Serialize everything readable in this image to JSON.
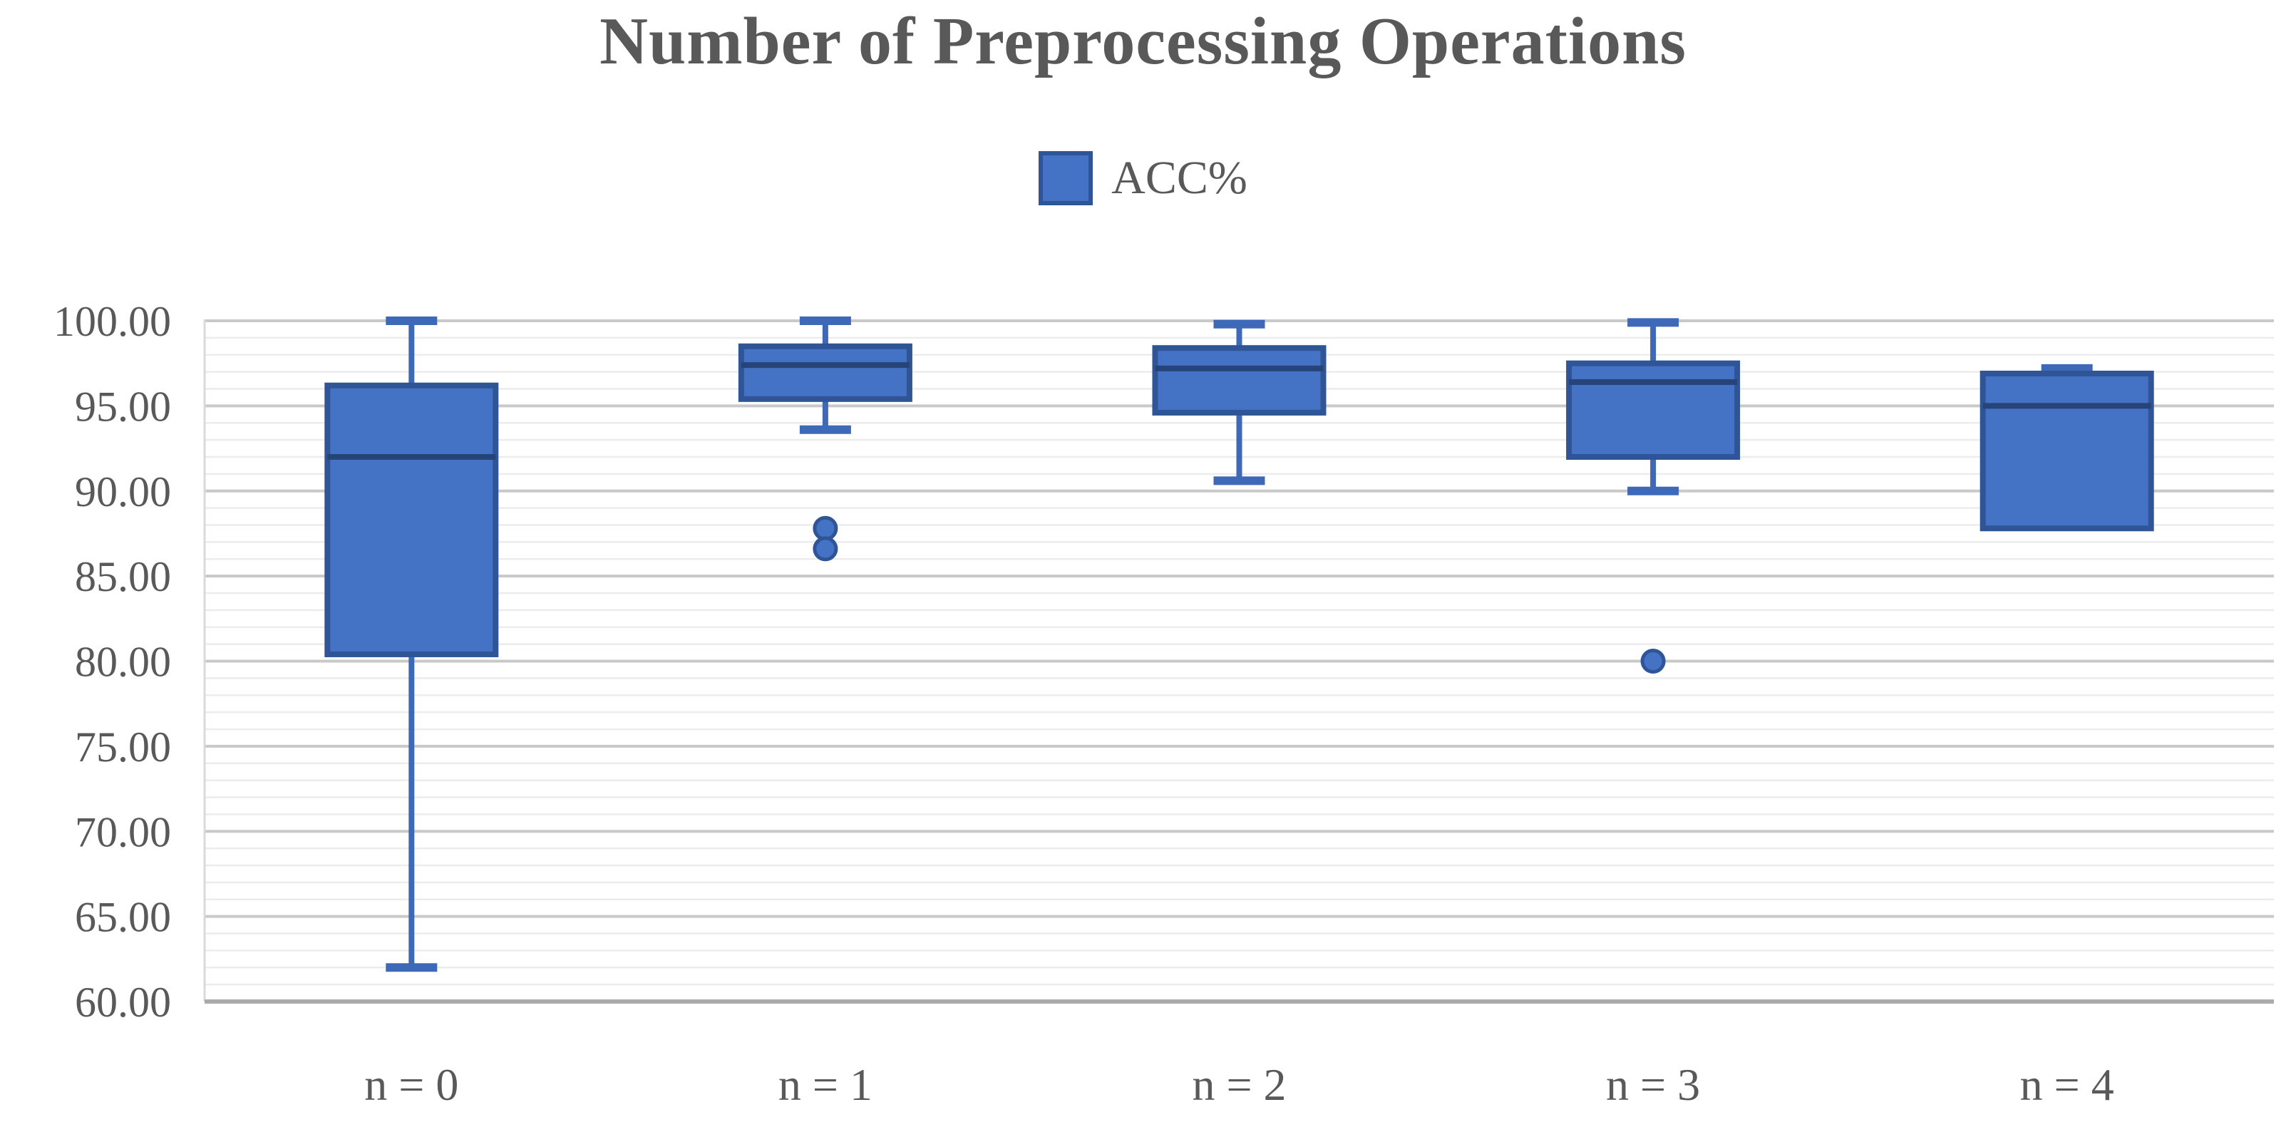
{
  "title": "Number of Preprocessing Operations",
  "legend": {
    "label": "ACC%"
  },
  "colors": {
    "box_fill": "#4472C4",
    "box_border": "#2F5597",
    "median_line": "#264478",
    "whisker": "#3E68B8",
    "outlier_fill": "#4472C4",
    "outlier_border": "#2F5597",
    "grid_minor": "#ECECEC",
    "grid_major": "#C9C9C9",
    "axis_line": "#ABABAB",
    "plot_border": "#D9D9D9",
    "text": "#595959"
  },
  "chart_data": {
    "type": "boxplot",
    "title": "Number of Preprocessing Operations",
    "legend_entries": [
      "ACC%"
    ],
    "categories": [
      "n = 0",
      "n = 1",
      "n = 2",
      "n = 3",
      "n = 4"
    ],
    "ylabel": "",
    "xlabel": "",
    "ylim": [
      60,
      100
    ],
    "y_major_step": 5,
    "y_minor_step": 1,
    "grid": true,
    "y_tick_labels": [
      "100.00",
      "95.00",
      "90.00",
      "85.00",
      "80.00",
      "75.00",
      "70.00",
      "65.00",
      "60.00"
    ],
    "series": [
      {
        "category": "n = 0",
        "min": 62.0,
        "q1": 80.4,
        "median": 92.0,
        "q3": 96.2,
        "max": 100.0,
        "outliers": []
      },
      {
        "category": "n = 1",
        "min": 93.6,
        "q1": 95.4,
        "median": 97.4,
        "q3": 98.5,
        "max": 100.0,
        "outliers": [
          87.8,
          86.6
        ]
      },
      {
        "category": "n = 2",
        "min": 90.6,
        "q1": 94.6,
        "median": 97.2,
        "q3": 98.4,
        "max": 99.8,
        "outliers": []
      },
      {
        "category": "n = 3",
        "min": 90.0,
        "q1": 92.0,
        "median": 96.4,
        "q3": 97.5,
        "max": 99.9,
        "outliers": [
          80.0
        ]
      },
      {
        "category": "n = 4",
        "min": 87.8,
        "q1": 87.8,
        "median": 95.0,
        "q3": 96.9,
        "max": 97.2,
        "outliers": []
      }
    ]
  }
}
